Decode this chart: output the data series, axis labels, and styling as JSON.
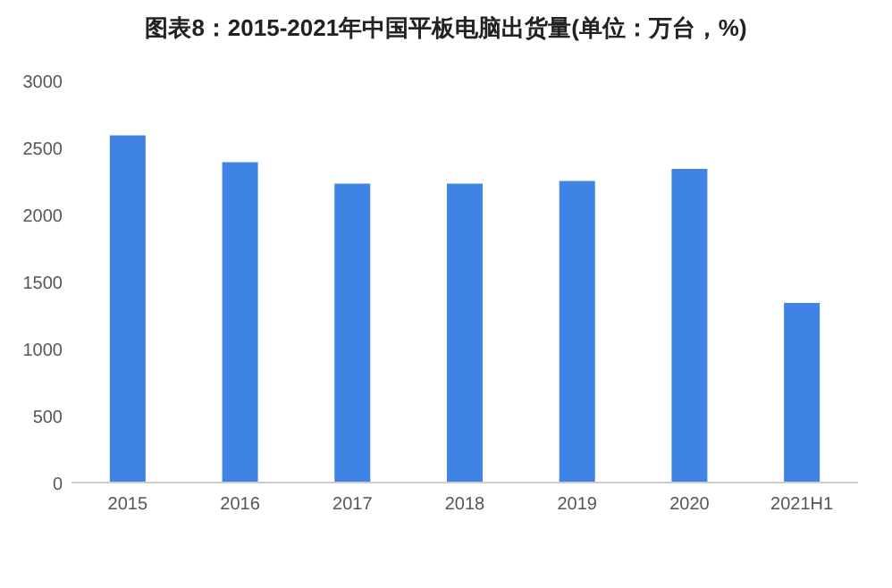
{
  "chart_data": {
    "type": "bar",
    "title": "图表8：2015-2021年中国平板电脑出货量(单位：万台，%)",
    "categories": [
      "2015",
      "2016",
      "2017",
      "2018",
      "2019",
      "2020",
      "2021H1"
    ],
    "values": [
      2590,
      2390,
      2230,
      2230,
      2250,
      2340,
      1340
    ],
    "color": "#3f84e5",
    "ylim": [
      0,
      3000
    ],
    "yticks": [
      0,
      500,
      1000,
      1500,
      2000,
      2500,
      3000
    ]
  }
}
